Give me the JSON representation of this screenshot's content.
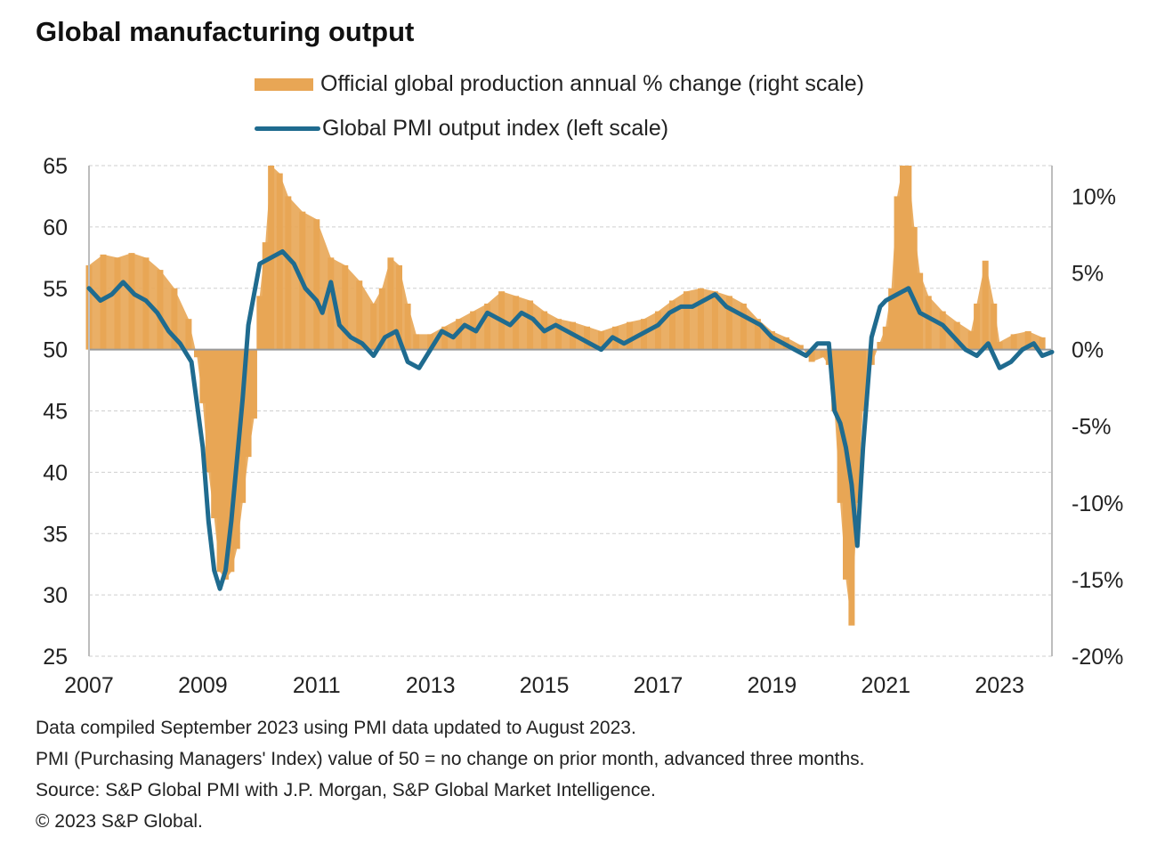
{
  "chart_data": {
    "type": "bar+line",
    "title": "Global manufacturing output",
    "legend_placement": "top-center",
    "grid": true,
    "x_axis": {
      "tick_labels": [
        "2007",
        "2009",
        "2011",
        "2013",
        "2015",
        "2017",
        "2019",
        "2021",
        "2023"
      ],
      "range": [
        2007.0,
        2023.92
      ]
    },
    "left_axis": {
      "tick_labels": [
        "65",
        "60",
        "55",
        "50",
        "45",
        "40",
        "35",
        "30",
        "25"
      ],
      "range": [
        25,
        65
      ]
    },
    "right_axis": {
      "tick_labels": [
        "10%",
        "5%",
        "0%",
        "-5%",
        "-10%",
        "-15%",
        "-20%"
      ],
      "range": [
        -20,
        12
      ]
    },
    "series": [
      {
        "name": "Official global production annual % change (right scale)",
        "kind": "bar",
        "axis": "right",
        "color": "#e8a655",
        "points": [
          [
            2007.0,
            5.5
          ],
          [
            2007.25,
            6.2
          ],
          [
            2007.5,
            6.0
          ],
          [
            2007.75,
            6.3
          ],
          [
            2008.0,
            6.0
          ],
          [
            2008.25,
            5.2
          ],
          [
            2008.5,
            4.0
          ],
          [
            2008.75,
            2.0
          ],
          [
            2008.9,
            -0.5
          ],
          [
            2009.0,
            -3.5
          ],
          [
            2009.1,
            -8
          ],
          [
            2009.2,
            -11
          ],
          [
            2009.3,
            -14.5
          ],
          [
            2009.4,
            -15
          ],
          [
            2009.5,
            -14.5
          ],
          [
            2009.6,
            -13
          ],
          [
            2009.7,
            -10
          ],
          [
            2009.8,
            -7
          ],
          [
            2009.9,
            -4.5
          ],
          [
            2010.0,
            3.5
          ],
          [
            2010.1,
            7
          ],
          [
            2010.2,
            12
          ],
          [
            2010.35,
            11.5
          ],
          [
            2010.5,
            10
          ],
          [
            2010.75,
            9
          ],
          [
            2011.0,
            8.5
          ],
          [
            2011.25,
            6
          ],
          [
            2011.5,
            5.5
          ],
          [
            2011.75,
            4.5
          ],
          [
            2012.0,
            3
          ],
          [
            2012.15,
            4
          ],
          [
            2012.3,
            6
          ],
          [
            2012.45,
            5.5
          ],
          [
            2012.6,
            3
          ],
          [
            2012.75,
            1
          ],
          [
            2013.0,
            1
          ],
          [
            2013.25,
            1.5
          ],
          [
            2013.5,
            2
          ],
          [
            2013.75,
            2.5
          ],
          [
            2014.0,
            3
          ],
          [
            2014.25,
            3.8
          ],
          [
            2014.5,
            3.5
          ],
          [
            2014.75,
            3.2
          ],
          [
            2015.0,
            2.5
          ],
          [
            2015.25,
            2
          ],
          [
            2015.5,
            1.8
          ],
          [
            2015.75,
            1.5
          ],
          [
            2016.0,
            1.2
          ],
          [
            2016.25,
            1.5
          ],
          [
            2016.5,
            1.8
          ],
          [
            2016.75,
            2
          ],
          [
            2017.0,
            2.5
          ],
          [
            2017.25,
            3.2
          ],
          [
            2017.5,
            3.8
          ],
          [
            2017.75,
            4
          ],
          [
            2018.0,
            3.8
          ],
          [
            2018.25,
            3.5
          ],
          [
            2018.5,
            3
          ],
          [
            2018.75,
            2
          ],
          [
            2019.0,
            1.2
          ],
          [
            2019.25,
            0.8
          ],
          [
            2019.5,
            0.3
          ],
          [
            2019.7,
            -0.8
          ],
          [
            2019.9,
            -0.5
          ],
          [
            2020.0,
            -1
          ],
          [
            2020.1,
            -4
          ],
          [
            2020.2,
            -10
          ],
          [
            2020.3,
            -15
          ],
          [
            2020.4,
            -18
          ],
          [
            2020.5,
            -10
          ],
          [
            2020.6,
            -4
          ],
          [
            2020.75,
            -1
          ],
          [
            2020.9,
            0.5
          ],
          [
            2021.0,
            1.5
          ],
          [
            2021.1,
            4
          ],
          [
            2021.2,
            10
          ],
          [
            2021.3,
            12
          ],
          [
            2021.4,
            12
          ],
          [
            2021.5,
            8
          ],
          [
            2021.6,
            5
          ],
          [
            2021.75,
            3.5
          ],
          [
            2022.0,
            2.5
          ],
          [
            2022.25,
            1.8
          ],
          [
            2022.5,
            1.2
          ],
          [
            2022.6,
            3
          ],
          [
            2022.75,
            5.8
          ],
          [
            2022.9,
            3
          ],
          [
            2023.0,
            0.5
          ],
          [
            2023.25,
            1
          ],
          [
            2023.5,
            1.2
          ],
          [
            2023.75,
            0.8
          ]
        ]
      },
      {
        "name": "Global PMI output index (left scale)",
        "kind": "line",
        "axis": "left",
        "color": "#1f6b8f",
        "points": [
          [
            2007.0,
            55
          ],
          [
            2007.2,
            54
          ],
          [
            2007.4,
            54.5
          ],
          [
            2007.6,
            55.5
          ],
          [
            2007.8,
            54.5
          ],
          [
            2008.0,
            54
          ],
          [
            2008.2,
            53
          ],
          [
            2008.4,
            51.5
          ],
          [
            2008.6,
            50.5
          ],
          [
            2008.8,
            49
          ],
          [
            2009.0,
            42
          ],
          [
            2009.1,
            36
          ],
          [
            2009.2,
            32
          ],
          [
            2009.3,
            30.5
          ],
          [
            2009.4,
            32
          ],
          [
            2009.5,
            36
          ],
          [
            2009.6,
            41
          ],
          [
            2009.7,
            46
          ],
          [
            2009.8,
            52
          ],
          [
            2010.0,
            57
          ],
          [
            2010.2,
            57.5
          ],
          [
            2010.4,
            58
          ],
          [
            2010.6,
            57
          ],
          [
            2010.8,
            55
          ],
          [
            2011.0,
            54
          ],
          [
            2011.1,
            53
          ],
          [
            2011.25,
            55.5
          ],
          [
            2011.4,
            52
          ],
          [
            2011.6,
            51
          ],
          [
            2011.8,
            50.5
          ],
          [
            2012.0,
            49.5
          ],
          [
            2012.2,
            51
          ],
          [
            2012.4,
            51.5
          ],
          [
            2012.6,
            49
          ],
          [
            2012.8,
            48.5
          ],
          [
            2013.0,
            50
          ],
          [
            2013.2,
            51.5
          ],
          [
            2013.4,
            51
          ],
          [
            2013.6,
            52
          ],
          [
            2013.8,
            51.5
          ],
          [
            2014.0,
            53
          ],
          [
            2014.2,
            52.5
          ],
          [
            2014.4,
            52
          ],
          [
            2014.6,
            53
          ],
          [
            2014.8,
            52.5
          ],
          [
            2015.0,
            51.5
          ],
          [
            2015.2,
            52
          ],
          [
            2015.4,
            51.5
          ],
          [
            2015.6,
            51
          ],
          [
            2015.8,
            50.5
          ],
          [
            2016.0,
            50
          ],
          [
            2016.2,
            51
          ],
          [
            2016.4,
            50.5
          ],
          [
            2016.6,
            51
          ],
          [
            2016.8,
            51.5
          ],
          [
            2017.0,
            52
          ],
          [
            2017.2,
            53
          ],
          [
            2017.4,
            53.5
          ],
          [
            2017.6,
            53.5
          ],
          [
            2017.8,
            54
          ],
          [
            2018.0,
            54.5
          ],
          [
            2018.2,
            53.5
          ],
          [
            2018.4,
            53
          ],
          [
            2018.6,
            52.5
          ],
          [
            2018.8,
            52
          ],
          [
            2019.0,
            51
          ],
          [
            2019.2,
            50.5
          ],
          [
            2019.4,
            50
          ],
          [
            2019.6,
            49.5
          ],
          [
            2019.8,
            50.5
          ],
          [
            2020.0,
            50.5
          ],
          [
            2020.1,
            45
          ],
          [
            2020.2,
            44
          ],
          [
            2020.3,
            42
          ],
          [
            2020.4,
            39
          ],
          [
            2020.5,
            34
          ],
          [
            2020.6,
            42
          ],
          [
            2020.75,
            51
          ],
          [
            2020.9,
            53.5
          ],
          [
            2021.0,
            54
          ],
          [
            2021.2,
            54.5
          ],
          [
            2021.4,
            55
          ],
          [
            2021.6,
            53
          ],
          [
            2021.8,
            52.5
          ],
          [
            2022.0,
            52
          ],
          [
            2022.2,
            51
          ],
          [
            2022.4,
            50
          ],
          [
            2022.6,
            49.5
          ],
          [
            2022.8,
            50.5
          ],
          [
            2022.9,
            49.5
          ],
          [
            2023.0,
            48.5
          ],
          [
            2023.2,
            49
          ],
          [
            2023.4,
            50
          ],
          [
            2023.6,
            50.5
          ],
          [
            2023.75,
            49.5
          ],
          [
            2023.92,
            49.8
          ]
        ]
      }
    ]
  },
  "notes": [
    "Data compiled September 2023 using PMI data updated to August 2023.",
    "PMI (Purchasing Managers' Index) value of 50 = no change on prior month, advanced three months.",
    "Source: S&P Global PMI with J.P. Morgan, S&P Global Market Intelligence.",
    "© 2023 S&P Global."
  ]
}
